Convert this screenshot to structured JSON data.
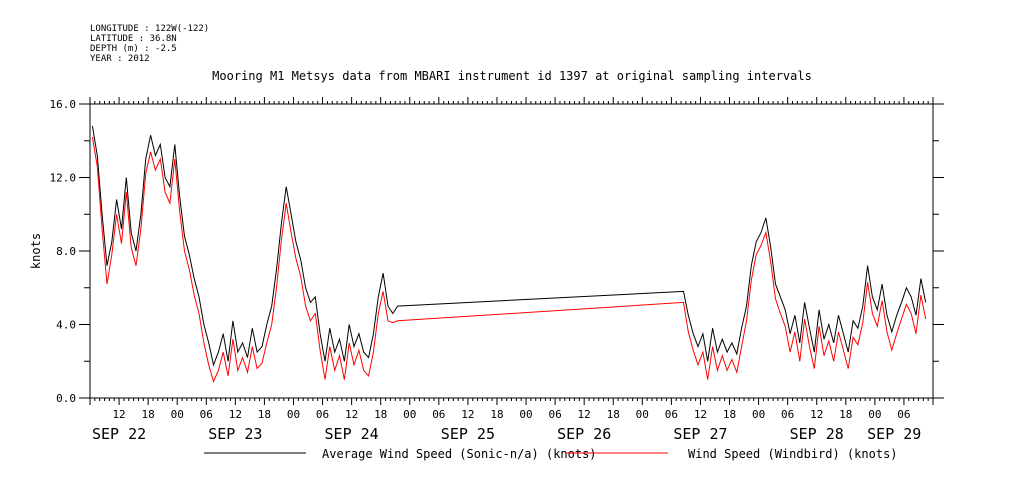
{
  "header": {
    "longitude": "LONGITUDE : 122W(-122)",
    "latitude": "LATITUDE : 36.8N",
    "depth": "DEPTH (m) : -2.5",
    "year": "YEAR : 2012"
  },
  "chart_data": {
    "type": "line",
    "title": "Mooring M1 Metsys data from MBARI instrument id 1397 at original sampling intervals",
    "ylabel": "knots",
    "xlabel": "",
    "ylim": [
      0,
      16
    ],
    "yticks": [
      "0.0",
      "4.0",
      "8.0",
      "12.0",
      "16.0"
    ],
    "xlim_hours": [
      6,
      180
    ],
    "hour_ticks": [
      {
        "h": 12,
        "label": "12"
      },
      {
        "h": 18,
        "label": "18"
      },
      {
        "h": 24,
        "label": "00"
      },
      {
        "h": 30,
        "label": "06"
      },
      {
        "h": 36,
        "label": "12"
      },
      {
        "h": 42,
        "label": "18"
      },
      {
        "h": 48,
        "label": "00"
      },
      {
        "h": 54,
        "label": "06"
      },
      {
        "h": 60,
        "label": "12"
      },
      {
        "h": 66,
        "label": "18"
      },
      {
        "h": 72,
        "label": "00"
      },
      {
        "h": 78,
        "label": "06"
      },
      {
        "h": 84,
        "label": "12"
      },
      {
        "h": 90,
        "label": "18"
      },
      {
        "h": 96,
        "label": "00"
      },
      {
        "h": 102,
        "label": "06"
      },
      {
        "h": 108,
        "label": "12"
      },
      {
        "h": 114,
        "label": "18"
      },
      {
        "h": 120,
        "label": "00"
      },
      {
        "h": 126,
        "label": "06"
      },
      {
        "h": 132,
        "label": "12"
      },
      {
        "h": 138,
        "label": "18"
      },
      {
        "h": 144,
        "label": "00"
      },
      {
        "h": 150,
        "label": "06"
      },
      {
        "h": 156,
        "label": "12"
      },
      {
        "h": 162,
        "label": "18"
      },
      {
        "h": 168,
        "label": "00"
      },
      {
        "h": 174,
        "label": "06"
      }
    ],
    "day_labels": [
      {
        "h": 12,
        "label": "SEP 22"
      },
      {
        "h": 36,
        "label": "SEP 23"
      },
      {
        "h": 60,
        "label": "SEP 24"
      },
      {
        "h": 84,
        "label": "SEP 25"
      },
      {
        "h": 108,
        "label": "SEP 26"
      },
      {
        "h": 132,
        "label": "SEP 27"
      },
      {
        "h": 156,
        "label": "SEP 28"
      },
      {
        "h": 172,
        "label": "SEP 29"
      }
    ],
    "series": [
      {
        "name": "Average Wind Speed (Sonic-n/a) (knots)",
        "color": "#000000",
        "x": [
          6.5,
          7.5,
          8.5,
          9.5,
          10.5,
          11.5,
          12.5,
          13.5,
          14.5,
          15.5,
          16.5,
          17.5,
          18.5,
          19.5,
          20.5,
          21.5,
          22.5,
          23.5,
          24.5,
          25.5,
          26.5,
          27.5,
          28.5,
          29.5,
          30.5,
          31.5,
          32.5,
          33.5,
          34.5,
          35.5,
          36.5,
          37.5,
          38.5,
          39.5,
          40.5,
          41.5,
          42.5,
          43.5,
          44.5,
          45.5,
          46.5,
          47.5,
          48.5,
          49.5,
          50.5,
          51.5,
          52.5,
          53.5,
          54.5,
          55.5,
          56.5,
          57.5,
          58.5,
          59.5,
          60.5,
          61.5,
          62.5,
          63.5,
          64.5,
          65.5,
          66.5,
          67.5,
          68.5,
          69.5,
          128.5,
          129.5,
          130.5,
          131.5,
          132.5,
          133.5,
          134.5,
          135.5,
          136.5,
          137.5,
          138.5,
          139.5,
          140.5,
          141.5,
          142.5,
          143.5,
          144.5,
          145.5,
          146.5,
          147.5,
          148.5,
          149.5,
          150.5,
          151.5,
          152.5,
          153.5,
          154.5,
          155.5,
          156.5,
          157.5,
          158.5,
          159.5,
          160.5,
          161.5,
          162.5,
          163.5,
          164.5,
          165.5,
          166.5,
          167.5,
          168.5,
          169.5,
          170.5,
          171.5,
          172.5,
          173.5,
          174.5,
          175.5,
          176.5,
          177.5,
          178.5
        ],
        "y": [
          14.8,
          13.2,
          10.0,
          7.2,
          8.5,
          10.8,
          9.2,
          12.0,
          9.0,
          8.0,
          10.0,
          13.0,
          14.3,
          13.2,
          13.8,
          12.0,
          11.5,
          13.8,
          11.0,
          8.8,
          7.8,
          6.5,
          5.5,
          4.0,
          3.0,
          1.8,
          2.5,
          3.5,
          2.0,
          4.2,
          2.5,
          3.0,
          2.2,
          3.8,
          2.5,
          2.8,
          4.0,
          5.0,
          7.0,
          9.5,
          11.5,
          10.0,
          8.5,
          7.5,
          6.0,
          5.2,
          5.5,
          3.5,
          2.0,
          3.8,
          2.5,
          3.2,
          2.0,
          4.0,
          2.8,
          3.5,
          2.5,
          2.2,
          3.5,
          5.5,
          6.8,
          5.0,
          4.6,
          5.0,
          5.8,
          4.5,
          3.5,
          2.8,
          3.5,
          2.0,
          3.8,
          2.5,
          3.2,
          2.5,
          3.0,
          2.4,
          3.8,
          5.0,
          7.2,
          8.5,
          9.0,
          9.8,
          8.2,
          6.2,
          5.5,
          4.8,
          3.5,
          4.5,
          3.0,
          5.2,
          3.8,
          2.5,
          4.8,
          3.2,
          4.0,
          3.0,
          4.5,
          3.5,
          2.5,
          4.2,
          3.8,
          5.0,
          7.2,
          5.5,
          4.8,
          6.2,
          4.5,
          3.6,
          4.5,
          5.2,
          6.0,
          5.5,
          4.5,
          6.5,
          5.2
        ]
      },
      {
        "name": "Wind Speed (Windbird) (knots)",
        "color": "#ff0000",
        "x": [
          6.5,
          7.5,
          8.5,
          9.5,
          10.5,
          11.5,
          12.5,
          13.5,
          14.5,
          15.5,
          16.5,
          17.5,
          18.5,
          19.5,
          20.5,
          21.5,
          22.5,
          23.5,
          24.5,
          25.5,
          26.5,
          27.5,
          28.5,
          29.5,
          30.5,
          31.5,
          32.5,
          33.5,
          34.5,
          35.5,
          36.5,
          37.5,
          38.5,
          39.5,
          40.5,
          41.5,
          42.5,
          43.5,
          44.5,
          45.5,
          46.5,
          47.5,
          48.5,
          49.5,
          50.5,
          51.5,
          52.5,
          53.5,
          54.5,
          55.5,
          56.5,
          57.5,
          58.5,
          59.5,
          60.5,
          61.5,
          62.5,
          63.5,
          64.5,
          65.5,
          66.5,
          67.5,
          68.5,
          69.5,
          128.5,
          129.5,
          130.5,
          131.5,
          132.5,
          133.5,
          134.5,
          135.5,
          136.5,
          137.5,
          138.5,
          139.5,
          140.5,
          141.5,
          142.5,
          143.5,
          144.5,
          145.5,
          146.5,
          147.5,
          148.5,
          149.5,
          150.5,
          151.5,
          152.5,
          153.5,
          154.5,
          155.5,
          156.5,
          157.5,
          158.5,
          159.5,
          160.5,
          161.5,
          162.5,
          163.5,
          164.5,
          165.5,
          166.5,
          167.5,
          168.5,
          169.5,
          170.5,
          171.5,
          172.5,
          173.5,
          174.5,
          175.5,
          176.5,
          177.5,
          178.5
        ],
        "y": [
          14.2,
          12.6,
          9.2,
          6.2,
          7.8,
          10.0,
          8.4,
          11.2,
          8.2,
          7.2,
          9.2,
          12.2,
          13.4,
          12.4,
          13.0,
          11.2,
          10.6,
          13.0,
          10.2,
          8.0,
          7.0,
          5.6,
          4.6,
          3.0,
          1.8,
          0.9,
          1.5,
          2.5,
          1.2,
          3.2,
          1.5,
          2.2,
          1.4,
          2.8,
          1.6,
          1.9,
          3.0,
          4.0,
          6.0,
          8.6,
          10.6,
          9.0,
          7.6,
          6.6,
          5.0,
          4.2,
          4.6,
          2.6,
          1.0,
          2.8,
          1.5,
          2.3,
          1.0,
          3.0,
          1.8,
          2.6,
          1.5,
          1.2,
          2.5,
          4.6,
          5.8,
          4.2,
          4.1,
          4.2,
          5.2,
          3.6,
          2.6,
          1.8,
          2.5,
          1.0,
          2.8,
          1.5,
          2.3,
          1.5,
          2.1,
          1.4,
          2.8,
          4.2,
          6.4,
          7.8,
          8.3,
          9.0,
          7.4,
          5.4,
          4.6,
          3.9,
          2.5,
          3.6,
          2.0,
          4.3,
          2.8,
          1.6,
          3.9,
          2.3,
          3.1,
          2.0,
          3.6,
          2.6,
          1.6,
          3.3,
          2.9,
          4.1,
          6.3,
          4.6,
          3.9,
          5.3,
          3.6,
          2.6,
          3.5,
          4.3,
          5.1,
          4.6,
          3.5,
          5.6,
          4.3
        ]
      }
    ],
    "grid": false,
    "legend_position": "bottom"
  }
}
